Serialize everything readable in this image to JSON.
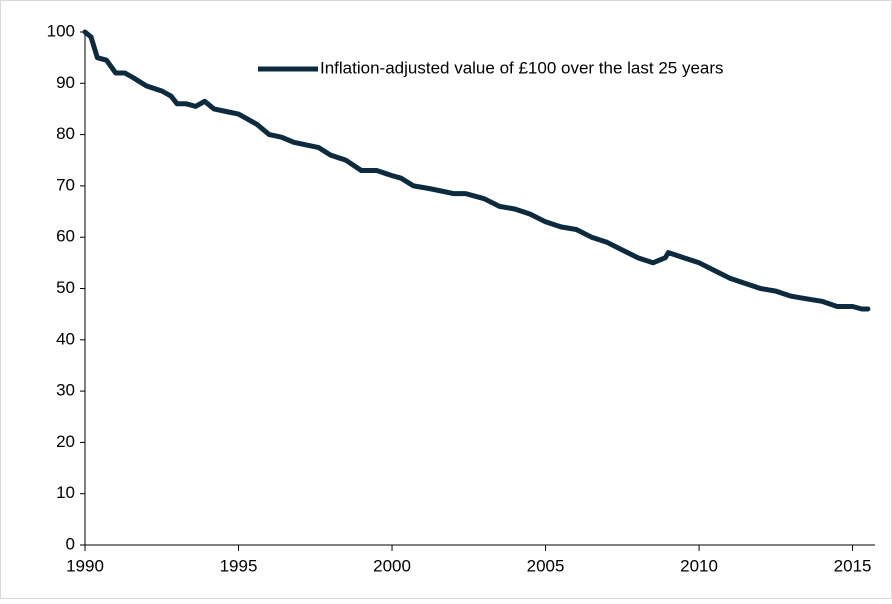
{
  "chart_data": {
    "type": "line",
    "x": [
      1990.0,
      1990.2,
      1990.4,
      1990.7,
      1991.0,
      1991.3,
      1991.6,
      1992.0,
      1992.5,
      1992.8,
      1993.0,
      1993.3,
      1993.6,
      1993.9,
      1994.2,
      1994.6,
      1995.0,
      1995.3,
      1995.6,
      1996.0,
      1996.4,
      1996.8,
      1997.2,
      1997.6,
      1998.0,
      1998.5,
      1999.0,
      1999.5,
      2000.0,
      2000.3,
      2000.7,
      2001.2,
      2001.6,
      2002.0,
      2002.4,
      2003.0,
      2003.5,
      2004.0,
      2004.5,
      2005.0,
      2005.5,
      2006.0,
      2006.5,
      2007.0,
      2007.5,
      2008.0,
      2008.5,
      2008.9,
      2009.0,
      2009.5,
      2010.0,
      2010.5,
      2011.0,
      2011.5,
      2012.0,
      2012.5,
      2013.0,
      2013.5,
      2014.0,
      2014.5,
      2015.0,
      2015.3,
      2015.5
    ],
    "series": [
      {
        "name": "Inflation-adjusted value of £100 over the last 25 years",
        "color": "#0d2b3e",
        "values": [
          100,
          99,
          95,
          94.5,
          92,
          92,
          91,
          89.5,
          88.5,
          87.5,
          86,
          86,
          85.5,
          86.5,
          85,
          84.5,
          84,
          83,
          82,
          80,
          79.5,
          78.5,
          78,
          77.5,
          76,
          75,
          73,
          73,
          72,
          71.5,
          70,
          69.5,
          69,
          68.5,
          68.5,
          67.5,
          66,
          65.5,
          64.5,
          63,
          62,
          61.5,
          60,
          59,
          57.5,
          56,
          55,
          56,
          57,
          56,
          55,
          53.5,
          52,
          51,
          50,
          49.5,
          48.5,
          48,
          47.5,
          46.5,
          46.5,
          46,
          46
        ]
      }
    ],
    "xlim": [
      1990,
      2015.6
    ],
    "xticks": [
      1990,
      1995,
      2000,
      2005,
      2010,
      2015
    ],
    "ylim": [
      0,
      100
    ],
    "yticks": [
      0,
      10,
      20,
      30,
      40,
      50,
      60,
      70,
      80,
      90,
      100
    ],
    "grid": false,
    "legend": "top-right"
  }
}
